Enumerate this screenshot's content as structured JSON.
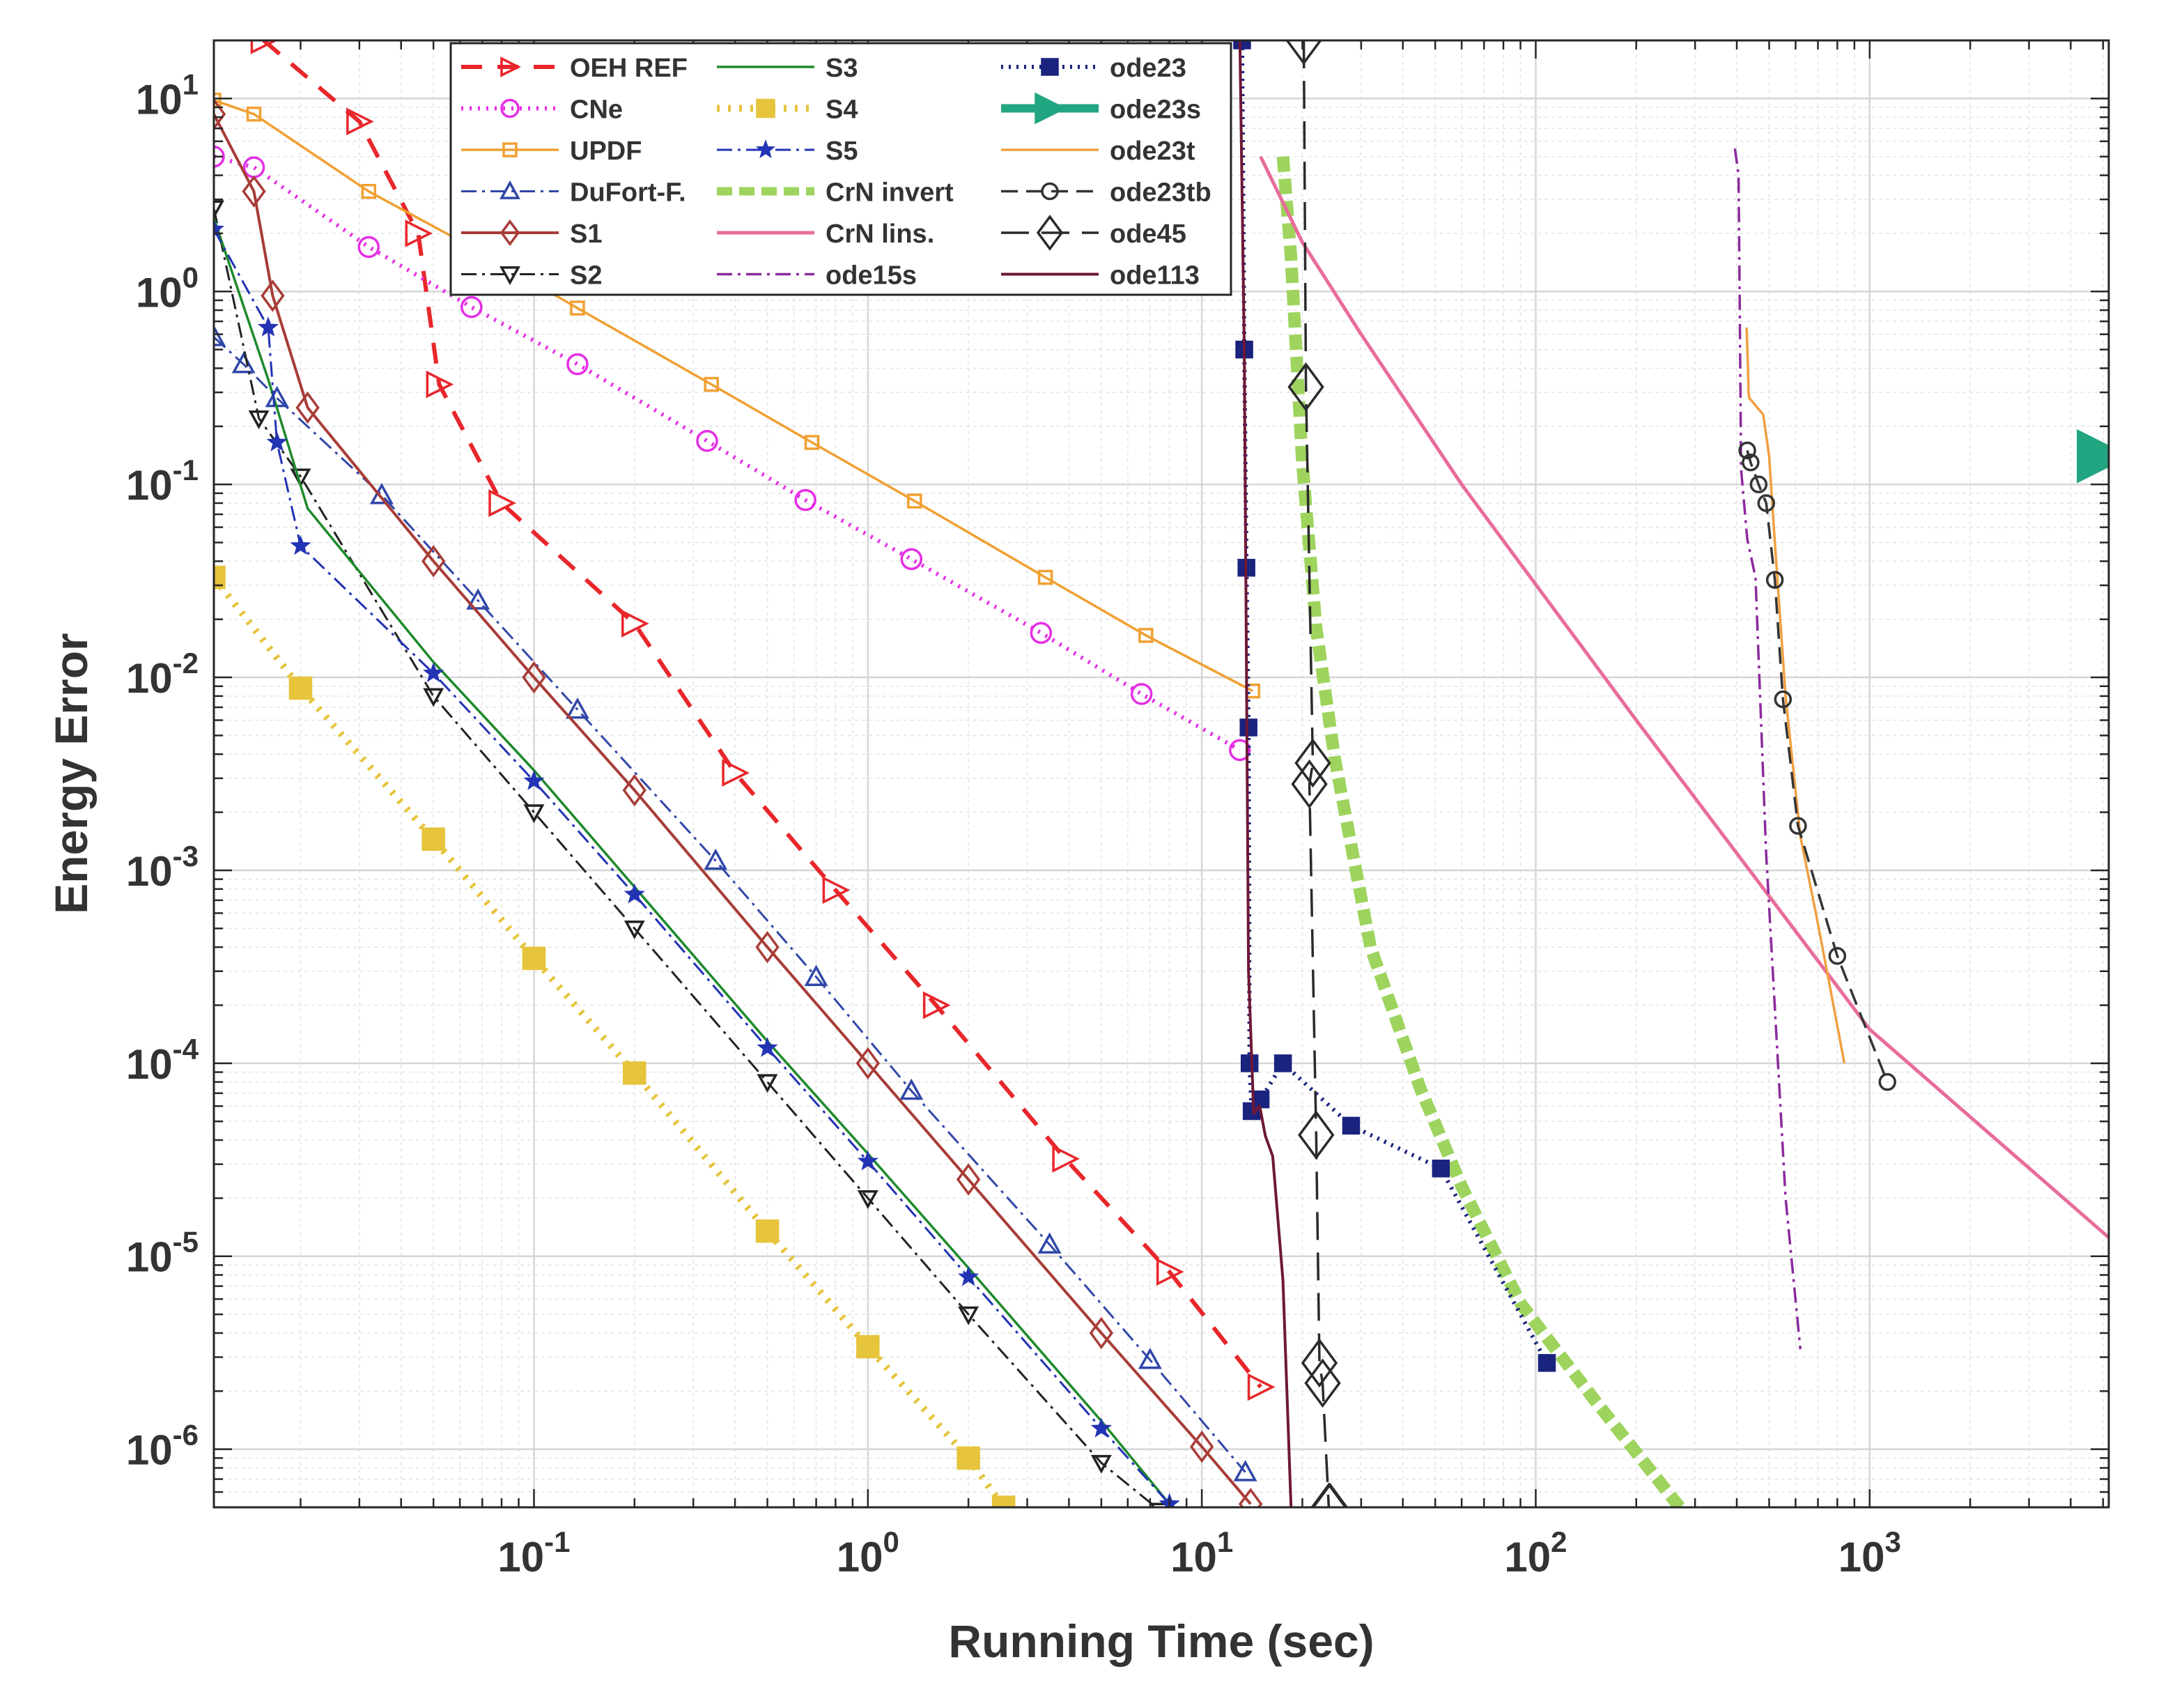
{
  "chart_data": {
    "type": "line",
    "title": "",
    "xlabel": "Running Time (sec)",
    "ylabel": "Energy Error",
    "xscale": "log",
    "yscale": "log",
    "xlim": [
      0.011,
      5200
    ],
    "ylim": [
      5e-07,
      20
    ],
    "x_ticks": [
      {
        "value": 0.1,
        "base": "10",
        "exp": "-1"
      },
      {
        "value": 1,
        "base": "10",
        "exp": "0"
      },
      {
        "value": 10,
        "base": "10",
        "exp": "1"
      },
      {
        "value": 100,
        "base": "10",
        "exp": "2"
      },
      {
        "value": 1000,
        "base": "10",
        "exp": "3"
      }
    ],
    "y_ticks": [
      {
        "value": 10,
        "base": "10",
        "exp": "1"
      },
      {
        "value": 1,
        "base": "10",
        "exp": "0"
      },
      {
        "value": 0.1,
        "base": "10",
        "exp": "-1"
      },
      {
        "value": 0.01,
        "base": "10",
        "exp": "-2"
      },
      {
        "value": 0.001,
        "base": "10",
        "exp": "-3"
      },
      {
        "value": 0.0001,
        "base": "10",
        "exp": "-4"
      },
      {
        "value": 1e-05,
        "base": "10",
        "exp": "-5"
      },
      {
        "value": 1e-06,
        "base": "10",
        "exp": "-6"
      }
    ],
    "grid": true,
    "legend_position": "top-left, inside plot, 3 columns",
    "series": [
      {
        "name": "OEH REF",
        "color": "#e8262b",
        "width": 6,
        "dash": "30 22",
        "marker": "tri-right",
        "msize": 17,
        "mfill": "none",
        "x": [
          0.0155,
          0.03,
          0.045,
          0.052,
          0.08,
          0.2,
          0.4,
          0.8,
          1.6,
          3.9,
          8.0,
          15.0
        ],
        "y": [
          20,
          7.6,
          2.0,
          0.33,
          0.08,
          0.019,
          0.0032,
          0.00079,
          0.0002,
          3.2e-05,
          8.3e-06,
          2.1e-06
        ]
      },
      {
        "name": "CNe",
        "color": "#e52ee5",
        "width": 6,
        "dash": "3 9",
        "marker": "circle",
        "msize": 14,
        "mfill": "none",
        "x": [
          0.011,
          0.0145,
          0.032,
          0.065,
          0.135,
          0.33,
          0.65,
          1.35,
          3.3,
          6.6,
          13.0
        ],
        "y": [
          5.0,
          4.4,
          1.7,
          0.83,
          0.42,
          0.168,
          0.083,
          0.041,
          0.017,
          0.0082,
          0.0042
        ]
      },
      {
        "name": "UPDF",
        "color": "#f0a032",
        "width": 3.5,
        "dash": "",
        "marker": "square",
        "msize": 9,
        "mfill": "none",
        "x": [
          0.011,
          0.0145,
          0.032,
          0.065,
          0.135,
          0.34,
          0.68,
          1.38,
          3.4,
          6.8,
          14.2
        ],
        "y": [
          9.8,
          8.3,
          3.3,
          1.7,
          0.82,
          0.33,
          0.165,
          0.082,
          0.033,
          0.0165,
          0.0085
        ]
      },
      {
        "name": "DuFort-F.",
        "color": "#3047a8",
        "width": 3,
        "dash": "22 8 4 8",
        "marker": "tri-up",
        "msize": 14,
        "mfill": "none",
        "x": [
          0.011,
          0.0135,
          0.017,
          0.035,
          0.068,
          0.135,
          0.35,
          0.7,
          1.35,
          3.5,
          7.0,
          13.5
        ],
        "y": [
          0.58,
          0.42,
          0.28,
          0.088,
          0.025,
          0.0068,
          0.00112,
          0.00028,
          7.2e-05,
          1.15e-05,
          2.9e-06,
          7.6e-07
        ]
      },
      {
        "name": "S1",
        "color": "#a83c37",
        "width": 4,
        "dash": "",
        "marker": "diamond",
        "msize": 15,
        "mfill": "none",
        "x": [
          0.011,
          0.0145,
          0.0165,
          0.021,
          0.05,
          0.1,
          0.2,
          0.5,
          1.0,
          2.0,
          5.0,
          10.0,
          14.0
        ],
        "y": [
          8.3,
          3.3,
          0.95,
          0.25,
          0.04,
          0.01,
          0.0026,
          0.0004,
          0.0001,
          2.5e-05,
          4e-06,
          1.03e-06,
          5.2e-07
        ]
      },
      {
        "name": "S2",
        "color": "#222222",
        "width": 3,
        "dash": "22 8 4 8",
        "marker": "tri-down",
        "msize": 12,
        "mfill": "none",
        "x": [
          0.011,
          0.015,
          0.02,
          0.05,
          0.1,
          0.2,
          0.5,
          1.0,
          2.0,
          5.0,
          7.5
        ],
        "y": [
          2.7,
          0.22,
          0.11,
          0.008,
          0.002,
          0.0005,
          8e-05,
          2e-05,
          5e-06,
          8.5e-07,
          4.8e-07
        ]
      },
      {
        "name": "S3",
        "color": "#1e8a2c",
        "width": 3.5,
        "dash": "",
        "marker": "none",
        "msize": 0,
        "mfill": "none",
        "x": [
          0.011,
          0.016,
          0.021,
          0.05,
          0.1,
          0.2,
          0.5,
          1.0,
          2.0,
          5.0,
          8.0
        ],
        "y": [
          2.4,
          0.35,
          0.075,
          0.012,
          0.0033,
          0.00082,
          0.00013,
          3.4e-05,
          8.7e-06,
          1.4e-06,
          5.2e-07
        ]
      },
      {
        "name": "S4",
        "color": "#e6c43c",
        "width": 10,
        "dash": "4 12",
        "marker": "square",
        "msize": 15,
        "mfill": "#e6c43c",
        "x": [
          0.011,
          0.02,
          0.05,
          0.1,
          0.2,
          0.5,
          1.0,
          2.0,
          2.55
        ],
        "y": [
          0.033,
          0.0088,
          0.00145,
          0.00035,
          8.9e-05,
          1.35e-05,
          3.4e-06,
          9e-07,
          5e-07
        ]
      },
      {
        "name": "S5",
        "color": "#2233b3",
        "width": 3,
        "dash": "22 8 4 8",
        "marker": "star",
        "msize": 13,
        "mfill": "#2233b3",
        "x": [
          0.011,
          0.016,
          0.017,
          0.02,
          0.05,
          0.1,
          0.2,
          0.5,
          1.0,
          2.0,
          5.0,
          8.0
        ],
        "y": [
          2.1,
          0.65,
          0.165,
          0.048,
          0.0105,
          0.0029,
          0.00075,
          0.00012,
          3.1e-05,
          7.8e-06,
          1.28e-06,
          5.2e-07
        ]
      },
      {
        "name": "CrN invert",
        "color": "#9ed45e",
        "width": 18,
        "dash": "22 10",
        "marker": "none",
        "msize": 0,
        "mfill": "none",
        "x": [
          17.5,
          18.5,
          20,
          22,
          25,
          32,
          45,
          60,
          90,
          150,
          270
        ],
        "y": [
          5,
          1.5,
          0.13,
          0.018,
          0.0038,
          0.0004,
          7.5e-05,
          2.3e-05,
          5.7e-06,
          1.8e-06,
          5e-07
        ]
      },
      {
        "name": "CrN lins.",
        "color": "#e86c9c",
        "width": 5,
        "dash": "",
        "marker": "none",
        "msize": 0,
        "mfill": "none",
        "x": [
          15,
          20,
          30,
          60,
          200,
          1000,
          5200
        ],
        "y": [
          5,
          1.8,
          0.6,
          0.1,
          0.006,
          0.00015,
          1.25e-05
        ]
      },
      {
        "name": "ode15s",
        "color": "#8c2a9e",
        "width": 3.5,
        "dash": "22 8 4 8",
        "marker": "none",
        "msize": 0,
        "mfill": "none",
        "x": [
          395,
          405,
          408,
          412,
          430,
          455,
          490,
          560,
          620
        ],
        "y": [
          5.5,
          4.0,
          0.9,
          0.12,
          0.052,
          0.033,
          0.0012,
          2e-05,
          3.3e-06
        ]
      },
      {
        "name": "ode23",
        "color": "#1a237e",
        "width": 6,
        "dash": "3 8",
        "marker": "square",
        "msize": 11,
        "mfill": "#1a237e",
        "x": [
          13.2,
          13.4,
          13.6,
          13.8,
          13.9,
          14.1,
          15.0,
          17.5,
          28,
          52,
          108
        ],
        "y": [
          20,
          0.5,
          0.037,
          0.0055,
          0.0001,
          5.65e-05,
          6.5e-05,
          0.0001,
          4.75e-05,
          2.85e-05,
          2.8e-06
        ]
      },
      {
        "name": "ode23s",
        "color": "#22a581",
        "width": 14,
        "dash": "",
        "marker": "tri-right",
        "msize": 36,
        "mfill": "#22a581",
        "x": [
          5000
        ],
        "y": [
          0.14
        ]
      },
      {
        "name": "ode23t",
        "color": "#f0a040",
        "width": 3.5,
        "dash": "",
        "marker": "none",
        "msize": 0,
        "mfill": "none",
        "x": [
          428,
          430,
          432,
          434,
          436,
          480,
          500,
          520,
          560,
          620,
          690,
          760,
          840
        ],
        "y": [
          0.65,
          0.52,
          0.4,
          0.3,
          0.28,
          0.23,
          0.14,
          0.05,
          0.008,
          0.0015,
          0.0006,
          0.00025,
          0.0001
        ]
      },
      {
        "name": "ode23tb",
        "color": "#333333",
        "width": 3.5,
        "dash": "24 12",
        "marker": "circle",
        "msize": 11,
        "mfill": "none",
        "x": [
          430,
          440,
          465,
          490,
          520,
          550,
          610,
          800,
          1130
        ],
        "y": [
          0.15,
          0.13,
          0.1,
          0.08,
          0.032,
          0.0077,
          0.0017,
          0.00036,
          8e-05
        ]
      },
      {
        "name": "ode45",
        "color": "#2a2a2a",
        "width": 3.5,
        "dash": "40 18",
        "marker": "diamond",
        "msize": 24,
        "mfill": "none",
        "x": [
          20.2,
          20.5,
          21.5,
          21.0,
          22.0,
          22.5,
          23.0,
          24.0,
          24.2
        ],
        "y": [
          20,
          0.32,
          0.0036,
          0.0028,
          4.25e-05,
          2.8e-06,
          2.2e-06,
          5e-07,
          5e-07
        ]
      },
      {
        "name": "ode113",
        "color": "#6e1835",
        "width": 4,
        "dash": "",
        "marker": "none",
        "msize": 0,
        "mfill": "none",
        "x": [
          13.0,
          13.4,
          13.8,
          14.3,
          14.9,
          15.5,
          16.3,
          17.5,
          18.5
        ],
        "y": [
          20,
          0.5,
          0.0003,
          5.5e-05,
          6e-05,
          4.2e-05,
          3.3e-05,
          7.5e-06,
          5e-07
        ]
      }
    ],
    "legend": [
      "OEH REF",
      "CNe",
      "UPDF",
      "DuFort-F.",
      "S1",
      "S2",
      "S3",
      "S4",
      "S5",
      "CrN invert",
      "CrN lins.",
      "ode15s",
      "ode23",
      "ode23s",
      "ode23t",
      "ode23tb",
      "ode45",
      "ode113"
    ]
  }
}
